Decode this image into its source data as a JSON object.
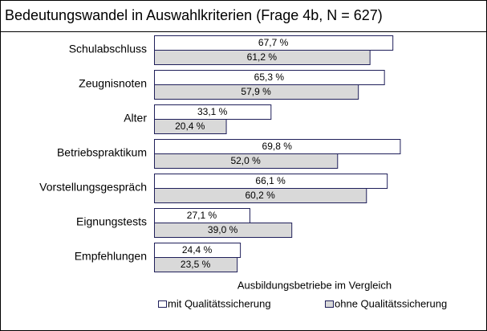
{
  "chart_data": {
    "type": "bar",
    "orientation": "horizontal",
    "title": "Bedeutungswandel in Auswahlkriterien (Frage 4b, N = 627)",
    "legend_title": "Ausbildungsbetriebe im Vergleich",
    "categories": [
      "Schulabschluss",
      "Zeugnisnoten",
      "Alter",
      "Betriebspraktikum",
      "Vorstellungsgespräch",
      "Eignungstests",
      "Empfehlungen"
    ],
    "series": [
      {
        "name": "mit Qualitätssicherung",
        "color": "#ffffff",
        "values": [
          67.7,
          65.3,
          33.1,
          69.8,
          66.1,
          27.1,
          24.4
        ],
        "value_labels": [
          "67,7 %",
          "65,3 %",
          "33,1 %",
          "69,8 %",
          "66,1 %",
          "27,1 %",
          "24,4 %"
        ]
      },
      {
        "name": "ohne Qualitätssicherung",
        "color": "#d9d9d9",
        "values": [
          61.2,
          57.9,
          20.4,
          52.0,
          60.2,
          39.0,
          23.5
        ],
        "value_labels": [
          "61,2 %",
          "57,9 %",
          "20,4 %",
          "52,0 %",
          "60,2 %",
          "39,0 %",
          "23,5 %"
        ]
      }
    ],
    "legend": "bottom"
  }
}
